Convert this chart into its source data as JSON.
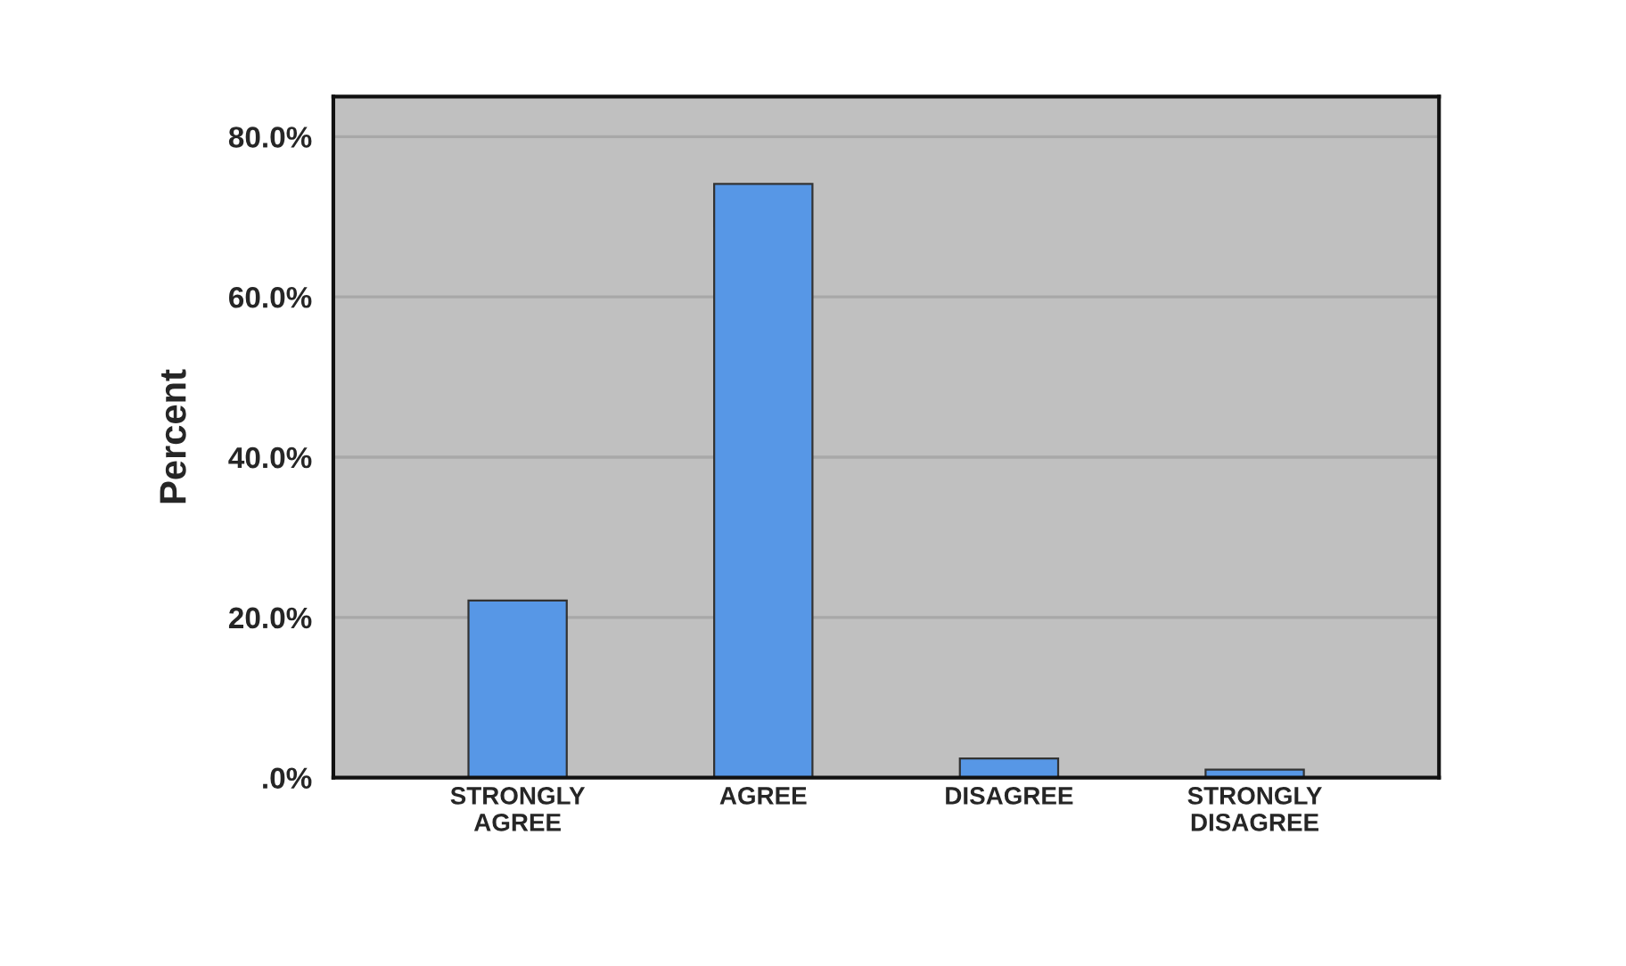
{
  "chart_data": {
    "type": "bar",
    "ylabel": "Percent",
    "categories": [
      "STRONGLY\nAGREE",
      "AGREE",
      "DISAGREE",
      "STRONGLY\nDISAGREE"
    ],
    "values": [
      22.1,
      74.1,
      2.4,
      1.0
    ],
    "color": "#5797e6",
    "ylim": [
      0,
      85
    ],
    "yticks": [
      {
        "value": 0,
        "label": ".0%"
      },
      {
        "value": 20,
        "label": "20.0%"
      },
      {
        "value": 40,
        "label": "40.0%"
      },
      {
        "value": 60,
        "label": "60.0%"
      },
      {
        "value": 80,
        "label": "80.0%"
      }
    ],
    "grid": "y"
  }
}
